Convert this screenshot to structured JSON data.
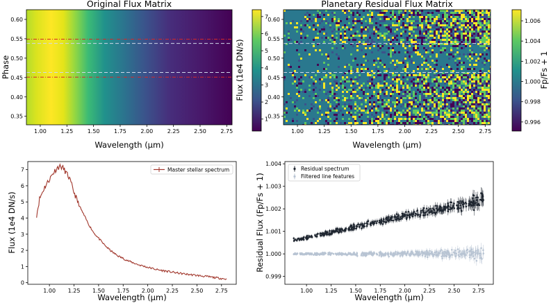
{
  "chart_data": [
    {
      "id": "p1",
      "type": "heatmap",
      "title": "Original Flux Matrix",
      "xlabel": "Wavelength (µm)",
      "ylabel": "Phase",
      "xlim": [
        0.87,
        2.8
      ],
      "ylim": [
        0.328,
        0.625
      ],
      "xticks": [
        1.0,
        1.25,
        1.5,
        1.75,
        2.0,
        2.25,
        2.5,
        2.75
      ],
      "yticks": [
        0.4,
        0.45,
        0.5,
        0.55,
        0.6,
        0.35
      ],
      "ytick_labels": [
        "0.40",
        "0.45",
        "0.50",
        "0.55",
        "0.60",
        "0.35"
      ],
      "colormap": "viridis",
      "lines": [
        {
          "y": 0.549,
          "color": "#d62728",
          "style": "dash-dot"
        },
        {
          "y": 0.538,
          "color": "#cfd8ea",
          "style": "dashed"
        },
        {
          "y": 0.463,
          "color": "#cfd8ea",
          "style": "dashed"
        },
        {
          "y": 0.451,
          "color": "#d62728",
          "style": "dash-dot"
        }
      ],
      "colorbar": {
        "ylabel": "Flux (1e4 DN/s)",
        "range": [
          0.3,
          7.4
        ],
        "ticks": [
          1,
          2,
          3,
          4,
          5,
          6,
          7
        ],
        "tick_labels": [
          "1",
          "2",
          "3",
          "4",
          "5",
          "6",
          "7"
        ]
      }
    },
    {
      "id": "p2",
      "type": "heatmap",
      "title": "Planetary Residual Flux Matrix",
      "xlabel": "Wavelength (µm)",
      "ylabel": "",
      "xlim": [
        0.87,
        2.8
      ],
      "ylim": [
        0.328,
        0.625
      ],
      "xticks": [
        1.0,
        1.25,
        1.5,
        1.75,
        2.0,
        2.25,
        2.5,
        2.75
      ],
      "yticks": [
        0.35,
        0.4,
        0.45,
        0.5,
        0.55,
        0.6
      ],
      "ytick_labels": [
        "0.35",
        "0.40",
        "0.45",
        "0.50",
        "0.55",
        "0.60"
      ],
      "colormap": "viridis",
      "lines": [
        {
          "y": 0.538,
          "color": "#cfd8ea",
          "style": "dashed"
        },
        {
          "y": 0.463,
          "color": "#cfd8ea",
          "style": "dashed"
        }
      ],
      "colorbar": {
        "ylabel": "Fp/Fs + 1",
        "range": [
          0.9951,
          1.0071
        ],
        "ticks": [
          0.996,
          0.998,
          1.0,
          1.002,
          1.004,
          1.006
        ],
        "tick_labels": [
          "0.996",
          "0.998",
          "1.000",
          "1.002",
          "1.004",
          "1.006"
        ]
      }
    },
    {
      "id": "p3",
      "type": "line",
      "title": "",
      "xlabel": "Wavelength (µm)",
      "ylabel": "Flux (1e4 DN/s)",
      "xlim": [
        0.78,
        2.9
      ],
      "ylim": [
        -0.1,
        7.5
      ],
      "xticks": [
        1.0,
        1.25,
        1.5,
        1.75,
        2.0,
        2.25,
        2.5,
        2.75
      ],
      "yticks": [
        0,
        1,
        2,
        3,
        4,
        5,
        6,
        7
      ],
      "legend": "top-right",
      "series": [
        {
          "name": "Master stellar spectrum",
          "color": "#a0352a",
          "x": [
            0.87,
            0.9,
            0.95,
            1.0,
            1.05,
            1.08,
            1.1,
            1.13,
            1.15,
            1.2,
            1.25,
            1.3,
            1.35,
            1.4,
            1.45,
            1.5,
            1.55,
            1.6,
            1.65,
            1.7,
            1.75,
            1.8,
            1.9,
            2.0,
            2.1,
            2.2,
            2.3,
            2.4,
            2.5,
            2.6,
            2.7,
            2.8
          ],
          "y": [
            4.2,
            5.2,
            5.9,
            6.4,
            6.9,
            7.1,
            7.2,
            7.15,
            7.0,
            6.5,
            5.6,
            4.8,
            4.2,
            3.6,
            3.1,
            2.75,
            2.4,
            2.1,
            1.85,
            1.65,
            1.5,
            1.35,
            1.12,
            0.95,
            0.8,
            0.7,
            0.6,
            0.52,
            0.45,
            0.38,
            0.3,
            0.22
          ]
        }
      ]
    },
    {
      "id": "p4",
      "type": "scatter",
      "title": "",
      "xlabel": "Wavelength (µm)",
      "ylabel": "Residual Flux (Fp/Fs + 1)",
      "xlim": [
        0.78,
        2.9
      ],
      "ylim": [
        0.99865,
        1.0041
      ],
      "xticks": [
        1.0,
        1.25,
        1.5,
        1.75,
        2.0,
        2.25,
        2.5,
        2.75
      ],
      "yticks": [
        0.999,
        1.0,
        1.001,
        1.002,
        1.003,
        1.004
      ],
      "ytick_labels": [
        "0.999",
        "1.000",
        "1.001",
        "1.002",
        "1.003",
        "1.004"
      ],
      "legend": "top-left",
      "series": [
        {
          "name": "Residual spectrum",
          "color": "#1f2630",
          "x": [
            0.87,
            1.0,
            1.25,
            1.5,
            1.75,
            2.0,
            2.25,
            2.5,
            2.6,
            2.7,
            2.8
          ],
          "y": [
            1.0006,
            1.00072,
            1.00095,
            1.0012,
            1.00145,
            1.0017,
            1.0019,
            1.0021,
            1.0022,
            1.0023,
            1.0024
          ],
          "spread": [
            0.0001,
            0.00012,
            0.00014,
            0.00016,
            0.00018,
            0.0002,
            0.00025,
            0.0003,
            0.00035,
            0.0004,
            0.00045
          ]
        },
        {
          "name": "Filtered line features",
          "color": "#b8c4d3",
          "x": [
            0.87,
            1.0,
            1.25,
            1.5,
            1.75,
            2.0,
            2.25,
            2.5,
            2.6,
            2.7,
            2.8
          ],
          "y": [
            1.0,
            1.0,
            1.0,
            1.0,
            1.0,
            1.0,
            1.0,
            1.0,
            1.0,
            1.0,
            1.0
          ],
          "spread": [
            6e-05,
            7e-05,
            9e-05,
            0.00011,
            0.00013,
            0.00015,
            0.0002,
            0.00025,
            0.0003,
            0.00035,
            0.0004
          ]
        }
      ]
    }
  ]
}
